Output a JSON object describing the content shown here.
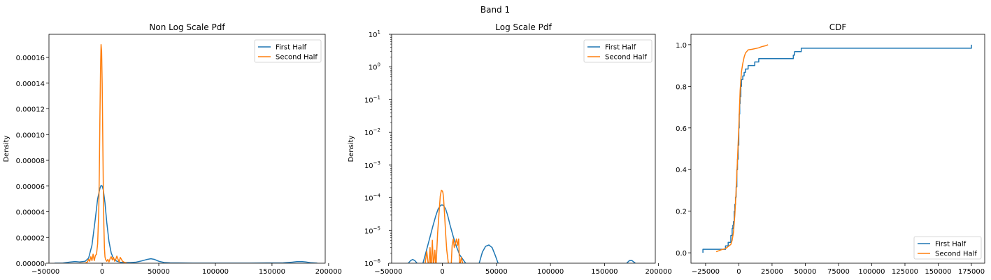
{
  "figure_title": "Band 1",
  "colors": {
    "first_half": "#1f77b4",
    "second_half": "#ff7f0e"
  },
  "chart_data": [
    {
      "type": "line",
      "title": "Non Log Scale Pdf",
      "xlabel": "",
      "ylabel": "Density",
      "xlim": [
        -47000,
        197000
      ],
      "ylim": [
        0,
        0.000178
      ],
      "yscale": "linear",
      "grid": false,
      "legend_loc": "upper right",
      "xticks": [
        -50000,
        0,
        50000,
        100000,
        150000,
        200000
      ],
      "xtick_labels": [
        "−50000",
        "0",
        "50000",
        "100000",
        "150000",
        "200000"
      ],
      "yticks": [
        0,
        2e-05,
        4e-05,
        6e-05,
        8e-05,
        0.0001,
        0.00012,
        0.00014,
        0.00016
      ],
      "ytick_labels": [
        "0.00000",
        "0.00002",
        "0.00004",
        "0.00006",
        "0.00008",
        "0.00010",
        "0.00012",
        "0.00014",
        "0.00016"
      ],
      "series": [
        {
          "name": "First Half",
          "x": [
            -42000,
            -35000,
            -29000,
            -24000,
            -20000,
            -15000,
            -12000,
            -9000,
            -6000,
            -4000,
            -2000,
            -1000,
            0,
            1000,
            2500,
            4000,
            6000,
            8000,
            10000,
            13000,
            16000,
            20000,
            25000,
            30000,
            35000,
            40000,
            43000,
            46000,
            50000,
            55000,
            60000,
            80000,
            100000,
            130000,
            160000,
            168000,
            172000,
            176000,
            180000,
            184000,
            190000
          ],
          "y": [
            0,
            0,
            8e-07,
            1.3e-06,
            1e-06,
            1.5e-06,
            4e-06,
            1.4e-05,
            3.5e-05,
            5e-05,
            5.8e-05,
            6.05e-05,
            6e-05,
            5.7e-05,
            4.7e-05,
            3.2e-05,
            1.7e-05,
            8e-06,
            3.5e-06,
            1.5e-06,
            7e-07,
            5e-07,
            5e-07,
            8e-07,
            1.8e-06,
            3e-06,
            3.5e-06,
            3e-06,
            1.5e-06,
            5e-07,
            2e-07,
            0,
            0,
            0,
            2e-07,
            8e-07,
            1.2e-06,
            1.3e-06,
            9e-07,
            3e-07,
            0
          ]
        },
        {
          "name": "Second Half",
          "x": [
            -20000,
            -15000,
            -13000,
            -12000,
            -11000,
            -10000,
            -9000,
            -8000,
            -7000,
            -6000,
            -5000,
            -4000,
            -3000,
            -2500,
            -2000,
            -1500,
            -1000,
            -500,
            0,
            500,
            1000,
            1500,
            2000,
            2500,
            3000,
            4000,
            5000,
            6000,
            7000,
            8000,
            9000,
            10000,
            11000,
            12000,
            13000,
            14000,
            15000,
            16000,
            18000,
            20000,
            22000
          ],
          "y": [
            0,
            0,
            1e-06,
            3e-06,
            1.5e-06,
            5e-06,
            2e-06,
            7e-06,
            2e-06,
            6e-06,
            7e-06,
            1.5e-05,
            4e-05,
            7e-05,
            0.00011,
            0.00015,
            0.00017,
            0.000165,
            0.00014,
            0.0001,
            6e-05,
            3e-05,
            1.2e-05,
            5e-06,
            3e-06,
            1.5e-06,
            3e-06,
            1e-06,
            3.5e-06,
            5e-06,
            2.5e-06,
            4.5e-06,
            1.5e-06,
            3e-06,
            5.5e-06,
            3e-06,
            1e-06,
            4.5e-06,
            1.5e-06,
            5e-07,
            0
          ]
        }
      ]
    },
    {
      "type": "line",
      "title": "Log Scale Pdf",
      "xlabel": "",
      "ylabel": "Density",
      "xlim": [
        -47000,
        197000
      ],
      "ylim": [
        1e-06,
        10
      ],
      "yscale": "log",
      "grid": false,
      "legend_loc": "upper right",
      "xticks": [
        -50000,
        0,
        50000,
        100000,
        150000,
        200000
      ],
      "xtick_labels": [
        "−50000",
        "0",
        "50000",
        "100000",
        "150000",
        "200000"
      ],
      "yticks": [
        1e-06,
        1e-05,
        0.0001,
        0.001,
        0.01,
        0.1,
        1,
        10
      ],
      "ytick_labels": [
        {
          "base": "10",
          "exp": "−6"
        },
        {
          "base": "10",
          "exp": "−5"
        },
        {
          "base": "10",
          "exp": "−4"
        },
        {
          "base": "10",
          "exp": "−3"
        },
        {
          "base": "10",
          "exp": "−2"
        },
        {
          "base": "10",
          "exp": "−1"
        },
        {
          "base": "10",
          "exp": "0"
        },
        {
          "base": "10",
          "exp": "1"
        }
      ],
      "series": [
        {
          "name": "First Half",
          "segments": [
            {
              "x": [
                -31500,
                -29500,
                -27500,
                -25500,
                -23500
              ],
              "y": [
                1e-06,
                1.2e-06,
                1.3e-06,
                1.2e-06,
                1e-06
              ]
            },
            {
              "x": [
                -18000,
                -15000,
                -12000,
                -9000,
                -6000,
                -4000,
                -2000,
                -1000,
                0,
                1000,
                3000,
                5000,
                7000,
                10000,
                13000,
                16000,
                19000,
                21500
              ],
              "y": [
                1e-06,
                2.3e-06,
                5.5e-06,
                1.3e-05,
                2.9e-05,
                4.5e-05,
                5.7e-05,
                6e-05,
                6e-05,
                5.8e-05,
                4.5e-05,
                2.8e-05,
                1.5e-05,
                6.5e-06,
                3.2e-06,
                1.8e-06,
                1.3e-06,
                1e-06
              ]
            },
            {
              "x": [
                34000,
                37000,
                40000,
                43000,
                46000,
                49000,
                51500
              ],
              "y": [
                1e-06,
                2.2e-06,
                3.3e-06,
                3.6e-06,
                3e-06,
                1.7e-06,
                1e-06
              ]
            },
            {
              "x": [
                170500,
                173000,
                175500,
                178500
              ],
              "y": [
                1e-06,
                1.2e-06,
                1.2e-06,
                1e-06
              ]
            }
          ]
        },
        {
          "name": "Second Half",
          "segments": [
            {
              "x": [
                -16000,
                -14500,
                -13200
              ],
              "y": [
                1e-06,
                2.3e-06,
                1e-06
              ]
            },
            {
              "x": [
                -12300,
                -11500,
                -10800
              ],
              "y": [
                1e-06,
                3e-06,
                1e-06
              ]
            },
            {
              "x": [
                -10200,
                -9300,
                -8500
              ],
              "y": [
                1e-06,
                5e-06,
                1e-06
              ]
            },
            {
              "x": [
                -8000,
                -7000,
                -6300
              ],
              "y": [
                1e-06,
                2.5e-06,
                1e-06
              ]
            },
            {
              "x": [
                -5800,
                -4500,
                -3000,
                -2000,
                -1000,
                0,
                500,
                1000,
                2000,
                3000,
                4000,
                5500
              ],
              "y": [
                1e-06,
                8e-06,
                4e-05,
                0.000112,
                0.00017,
                0.00016,
                0.00014,
                0.0001,
                3e-05,
                7.5e-06,
                2.5e-06,
                1e-06
              ]
            },
            {
              "x": [
                8200,
                9000,
                10000,
                11000,
                12000,
                13000,
                14000,
                15000,
                15800
              ],
              "y": [
                1e-06,
                3.5e-06,
                5.5e-06,
                3e-06,
                4e-06,
                5.5e-06,
                3.5e-06,
                5.5e-06,
                1e-06
              ]
            },
            {
              "x": [
                16500,
                17500,
                18700
              ],
              "y": [
                1e-06,
                1.5e-06,
                1e-06
              ]
            }
          ]
        }
      ]
    },
    {
      "type": "line",
      "title": "CDF",
      "xlabel": "",
      "ylabel": "",
      "xlim": [
        -36000,
        185000
      ],
      "ylim": [
        -0.05,
        1.05
      ],
      "yscale": "linear",
      "grid": false,
      "legend_loc": "lower right",
      "xticks": [
        -25000,
        0,
        25000,
        50000,
        75000,
        100000,
        125000,
        150000,
        175000
      ],
      "xtick_labels": [
        "−25000",
        "0",
        "25000",
        "50000",
        "75000",
        "100000",
        "125000",
        "150000",
        "175000"
      ],
      "yticks": [
        0,
        0.2,
        0.4,
        0.6,
        0.8,
        1.0
      ],
      "ytick_labels": [
        "0.0",
        "0.2",
        "0.4",
        "0.6",
        "0.8",
        "1.0"
      ],
      "series": [
        {
          "name": "First Half",
          "step": true,
          "x": [
            -27000,
            -27000,
            -10000,
            -8000,
            -6000,
            -5000,
            -4500,
            -4000,
            -3500,
            -3000,
            -2500,
            -2000,
            -1500,
            -1000,
            -500,
            0,
            300,
            700,
            1000,
            1500,
            2000,
            3000,
            4000,
            5000,
            7000,
            10000,
            12000,
            15000,
            20000,
            30000,
            41000,
            42000,
            47000,
            100000,
            175000,
            175000
          ],
          "y": [
            0,
            0.017,
            0.033,
            0.05,
            0.083,
            0.117,
            0.133,
            0.15,
            0.2,
            0.233,
            0.267,
            0.317,
            0.4,
            0.45,
            0.517,
            0.6,
            0.667,
            0.717,
            0.75,
            0.8,
            0.833,
            0.85,
            0.867,
            0.883,
            0.9,
            0.9,
            0.917,
            0.933,
            0.933,
            0.933,
            0.95,
            0.967,
            0.983,
            0.983,
            0.983,
            1.0
          ]
        },
        {
          "name": "Second Half",
          "step": false,
          "x": [
            -17000,
            -15000,
            -13000,
            -10000,
            -8000,
            -6000,
            -5000,
            -4000,
            -3000,
            -2000,
            -1000,
            0,
            500,
            1000,
            1500,
            2000,
            3000,
            4000,
            5000,
            7000,
            10000,
            13000,
            15000,
            17000,
            20000,
            22000
          ],
          "y": [
            0.005,
            0.01,
            0.015,
            0.02,
            0.03,
            0.04,
            0.06,
            0.1,
            0.18,
            0.3,
            0.45,
            0.6,
            0.7,
            0.78,
            0.83,
            0.87,
            0.91,
            0.94,
            0.96,
            0.975,
            0.978,
            0.982,
            0.985,
            0.99,
            0.995,
            1.0
          ]
        }
      ]
    }
  ]
}
